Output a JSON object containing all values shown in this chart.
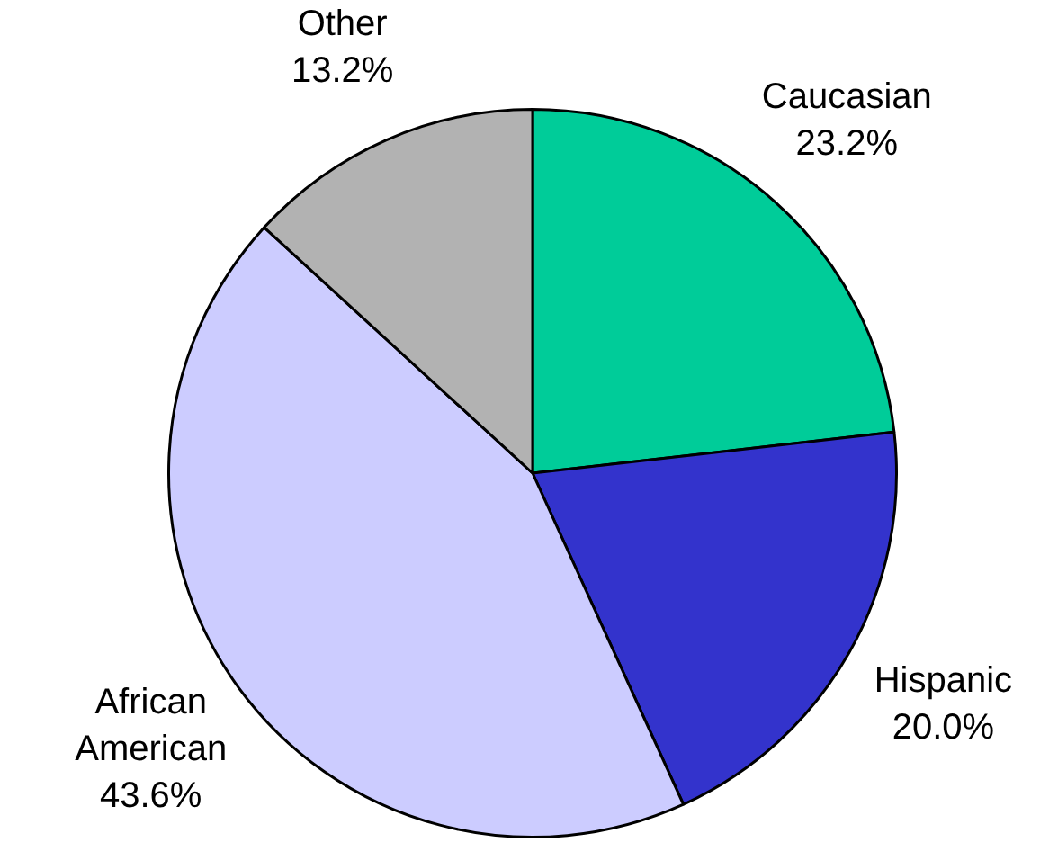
{
  "chart_data": {
    "type": "pie",
    "categories": [
      "Caucasian",
      "Hispanic",
      "African American",
      "Other"
    ],
    "values": [
      23.2,
      20.0,
      43.6,
      13.2
    ],
    "colors": [
      "#00cc99",
      "#3333cc",
      "#ccccff",
      "#b2b2b2"
    ],
    "value_labels": [
      "23.2%",
      "20.0%",
      "43.6%",
      "13.2%"
    ],
    "legend": false
  }
}
